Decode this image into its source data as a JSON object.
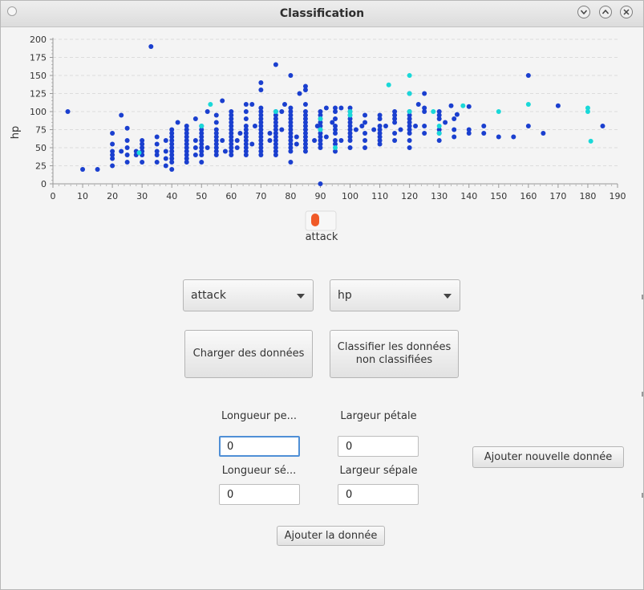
{
  "window": {
    "title": "Classification",
    "controls": [
      "chevron-down-icon",
      "chevron-up-icon",
      "close-icon"
    ]
  },
  "chart_data": {
    "type": "scatter",
    "title": "",
    "xlabel": "",
    "ylabel": "hp",
    "xlim": [
      0,
      190
    ],
    "ylim": [
      0,
      200
    ],
    "x_ticks": [
      "0",
      "10",
      "20",
      "30",
      "40",
      "50",
      "60",
      "70",
      "80",
      "90",
      "100",
      "110",
      "120",
      "130",
      "140",
      "150",
      "160",
      "170",
      "180",
      "190"
    ],
    "y_ticks": [
      "0",
      "25",
      "50",
      "75",
      "100",
      "125",
      "150",
      "175",
      "200"
    ],
    "grid": true,
    "legend": {
      "placement": "bottom-center",
      "entries": [
        {
          "label": "attack",
          "color": "#f05a28"
        }
      ]
    },
    "colors": {
      "classified": "#1a3fcf",
      "unclassified": "#19d8d8"
    },
    "series": [
      {
        "class": "classified",
        "points": [
          [
            5,
            100
          ],
          [
            10,
            20
          ],
          [
            15,
            20
          ],
          [
            20,
            25
          ],
          [
            20,
            35
          ],
          [
            20,
            40
          ],
          [
            20,
            45
          ],
          [
            20,
            55
          ],
          [
            20,
            70
          ],
          [
            23,
            45
          ],
          [
            23,
            95
          ],
          [
            25,
            30
          ],
          [
            25,
            40
          ],
          [
            25,
            50
          ],
          [
            25,
            60
          ],
          [
            25,
            77
          ],
          [
            28,
            40
          ],
          [
            28,
            45
          ],
          [
            30,
            30
          ],
          [
            30,
            40
          ],
          [
            30,
            45
          ],
          [
            30,
            50
          ],
          [
            30,
            55
          ],
          [
            30,
            60
          ],
          [
            33,
            190
          ],
          [
            35,
            30
          ],
          [
            35,
            40
          ],
          [
            35,
            45
          ],
          [
            35,
            55
          ],
          [
            35,
            65
          ],
          [
            38,
            25
          ],
          [
            38,
            35
          ],
          [
            38,
            45
          ],
          [
            38,
            60
          ],
          [
            40,
            20
          ],
          [
            40,
            30
          ],
          [
            40,
            35
          ],
          [
            40,
            40
          ],
          [
            40,
            45
          ],
          [
            40,
            50
          ],
          [
            40,
            55
          ],
          [
            40,
            60
          ],
          [
            40,
            65
          ],
          [
            40,
            70
          ],
          [
            40,
            75
          ],
          [
            42,
            85
          ],
          [
            45,
            30
          ],
          [
            45,
            35
          ],
          [
            45,
            40
          ],
          [
            45,
            45
          ],
          [
            45,
            50
          ],
          [
            45,
            55
          ],
          [
            45,
            60
          ],
          [
            45,
            65
          ],
          [
            45,
            70
          ],
          [
            45,
            75
          ],
          [
            45,
            80
          ],
          [
            48,
            40
          ],
          [
            48,
            50
          ],
          [
            48,
            60
          ],
          [
            48,
            90
          ],
          [
            50,
            30
          ],
          [
            50,
            40
          ],
          [
            50,
            45
          ],
          [
            50,
            50
          ],
          [
            50,
            55
          ],
          [
            50,
            60
          ],
          [
            50,
            65
          ],
          [
            50,
            70
          ],
          [
            50,
            75
          ],
          [
            50,
            80
          ],
          [
            52,
            50
          ],
          [
            52,
            100
          ],
          [
            55,
            40
          ],
          [
            55,
            45
          ],
          [
            55,
            50
          ],
          [
            55,
            55
          ],
          [
            55,
            60
          ],
          [
            55,
            65
          ],
          [
            55,
            70
          ],
          [
            55,
            75
          ],
          [
            55,
            85
          ],
          [
            55,
            95
          ],
          [
            57,
            60
          ],
          [
            57,
            115
          ],
          [
            58,
            45
          ],
          [
            60,
            40
          ],
          [
            60,
            45
          ],
          [
            60,
            50
          ],
          [
            60,
            55
          ],
          [
            60,
            60
          ],
          [
            60,
            65
          ],
          [
            60,
            70
          ],
          [
            60,
            75
          ],
          [
            60,
            80
          ],
          [
            60,
            85
          ],
          [
            60,
            90
          ],
          [
            60,
            95
          ],
          [
            60,
            100
          ],
          [
            62,
            50
          ],
          [
            62,
            60
          ],
          [
            63,
            70
          ],
          [
            65,
            40
          ],
          [
            65,
            45
          ],
          [
            65,
            50
          ],
          [
            65,
            55
          ],
          [
            65,
            60
          ],
          [
            65,
            65
          ],
          [
            65,
            70
          ],
          [
            65,
            75
          ],
          [
            65,
            80
          ],
          [
            65,
            90
          ],
          [
            65,
            100
          ],
          [
            65,
            110
          ],
          [
            67,
            55
          ],
          [
            67,
            110
          ],
          [
            68,
            80
          ],
          [
            70,
            40
          ],
          [
            70,
            45
          ],
          [
            70,
            50
          ],
          [
            70,
            55
          ],
          [
            70,
            60
          ],
          [
            70,
            65
          ],
          [
            70,
            70
          ],
          [
            70,
            75
          ],
          [
            70,
            80
          ],
          [
            70,
            85
          ],
          [
            70,
            90
          ],
          [
            70,
            95
          ],
          [
            70,
            100
          ],
          [
            70,
            105
          ],
          [
            70,
            130
          ],
          [
            70,
            140
          ],
          [
            73,
            60
          ],
          [
            73,
            70
          ],
          [
            75,
            40
          ],
          [
            75,
            45
          ],
          [
            75,
            50
          ],
          [
            75,
            55
          ],
          [
            75,
            60
          ],
          [
            75,
            65
          ],
          [
            75,
            70
          ],
          [
            75,
            75
          ],
          [
            75,
            80
          ],
          [
            75,
            85
          ],
          [
            75,
            90
          ],
          [
            75,
            95
          ],
          [
            75,
            100
          ],
          [
            75,
            165
          ],
          [
            77,
            75
          ],
          [
            77,
            100
          ],
          [
            78,
            110
          ],
          [
            80,
            30
          ],
          [
            80,
            45
          ],
          [
            80,
            50
          ],
          [
            80,
            55
          ],
          [
            80,
            60
          ],
          [
            80,
            65
          ],
          [
            80,
            70
          ],
          [
            80,
            75
          ],
          [
            80,
            80
          ],
          [
            80,
            85
          ],
          [
            80,
            90
          ],
          [
            80,
            95
          ],
          [
            80,
            100
          ],
          [
            80,
            105
          ],
          [
            80,
            150
          ],
          [
            82,
            55
          ],
          [
            82,
            65
          ],
          [
            83,
            125
          ],
          [
            85,
            45
          ],
          [
            85,
            50
          ],
          [
            85,
            55
          ],
          [
            85,
            60
          ],
          [
            85,
            65
          ],
          [
            85,
            70
          ],
          [
            85,
            75
          ],
          [
            85,
            80
          ],
          [
            85,
            85
          ],
          [
            85,
            90
          ],
          [
            85,
            95
          ],
          [
            85,
            100
          ],
          [
            85,
            110
          ],
          [
            85,
            130
          ],
          [
            85,
            135
          ],
          [
            88,
            60
          ],
          [
            89,
            80
          ],
          [
            90,
            0
          ],
          [
            90,
            50
          ],
          [
            90,
            55
          ],
          [
            90,
            60
          ],
          [
            90,
            65
          ],
          [
            90,
            70
          ],
          [
            90,
            75
          ],
          [
            90,
            80
          ],
          [
            90,
            85
          ],
          [
            90,
            90
          ],
          [
            90,
            95
          ],
          [
            90,
            100
          ],
          [
            92,
            65
          ],
          [
            92,
            105
          ],
          [
            94,
            85
          ],
          [
            95,
            45
          ],
          [
            95,
            55
          ],
          [
            95,
            60
          ],
          [
            95,
            70
          ],
          [
            95,
            75
          ],
          [
            95,
            80
          ],
          [
            95,
            90
          ],
          [
            95,
            100
          ],
          [
            95,
            105
          ],
          [
            97,
            60
          ],
          [
            97,
            105
          ],
          [
            100,
            50
          ],
          [
            100,
            60
          ],
          [
            100,
            65
          ],
          [
            100,
            70
          ],
          [
            100,
            75
          ],
          [
            100,
            80
          ],
          [
            100,
            85
          ],
          [
            100,
            90
          ],
          [
            100,
            95
          ],
          [
            100,
            100
          ],
          [
            100,
            105
          ],
          [
            102,
            75
          ],
          [
            104,
            80
          ],
          [
            105,
            50
          ],
          [
            105,
            60
          ],
          [
            105,
            70
          ],
          [
            105,
            85
          ],
          [
            105,
            95
          ],
          [
            108,
            75
          ],
          [
            110,
            55
          ],
          [
            110,
            60
          ],
          [
            110,
            65
          ],
          [
            110,
            70
          ],
          [
            110,
            75
          ],
          [
            110,
            80
          ],
          [
            110,
            90
          ],
          [
            110,
            95
          ],
          [
            112,
            80
          ],
          [
            115,
            60
          ],
          [
            115,
            70
          ],
          [
            115,
            85
          ],
          [
            115,
            90
          ],
          [
            115,
            95
          ],
          [
            115,
            100
          ],
          [
            117,
            75
          ],
          [
            120,
            50
          ],
          [
            120,
            60
          ],
          [
            120,
            70
          ],
          [
            120,
            75
          ],
          [
            120,
            80
          ],
          [
            120,
            85
          ],
          [
            120,
            90
          ],
          [
            120,
            95
          ],
          [
            120,
            100
          ],
          [
            120,
            125
          ],
          [
            122,
            80
          ],
          [
            123,
            110
          ],
          [
            125,
            70
          ],
          [
            125,
            80
          ],
          [
            125,
            100
          ],
          [
            125,
            105
          ],
          [
            125,
            125
          ],
          [
            130,
            60
          ],
          [
            130,
            70
          ],
          [
            130,
            75
          ],
          [
            130,
            90
          ],
          [
            130,
            95
          ],
          [
            130,
            100
          ],
          [
            132,
            85
          ],
          [
            134,
            108
          ],
          [
            135,
            65
          ],
          [
            135,
            75
          ],
          [
            135,
            90
          ],
          [
            136,
            96
          ],
          [
            140,
            70
          ],
          [
            140,
            75
          ],
          [
            140,
            107
          ],
          [
            145,
            70
          ],
          [
            145,
            80
          ],
          [
            150,
            65
          ],
          [
            155,
            65
          ],
          [
            160,
            80
          ],
          [
            160,
            150
          ],
          [
            165,
            70
          ],
          [
            170,
            108
          ],
          [
            185,
            80
          ]
        ]
      },
      {
        "class": "unclassified",
        "points": [
          [
            29,
            43
          ],
          [
            50,
            80
          ],
          [
            53,
            110
          ],
          [
            75,
            100
          ],
          [
            90,
            75
          ],
          [
            90,
            90
          ],
          [
            95,
            50
          ],
          [
            100,
            95
          ],
          [
            100,
            100
          ],
          [
            113,
            137
          ],
          [
            120,
            100
          ],
          [
            120,
            125
          ],
          [
            120,
            150
          ],
          [
            128,
            100
          ],
          [
            130,
            70
          ],
          [
            130,
            80
          ],
          [
            138,
            108
          ],
          [
            150,
            100
          ],
          [
            160,
            110
          ],
          [
            180,
            100
          ],
          [
            180,
            105
          ],
          [
            181,
            59
          ]
        ]
      }
    ]
  },
  "controls": {
    "x_axis_select": {
      "selected": "attack"
    },
    "y_axis_select": {
      "selected": "hp"
    },
    "load_button_label": "Charger des données",
    "classify_button_label_line1": "Classifier les données",
    "classify_button_label_line2": "non classifiées"
  },
  "form": {
    "field1": {
      "label": "Longueur pe...",
      "value": "0"
    },
    "field2": {
      "label": "Largeur pétale",
      "value": "0"
    },
    "field3": {
      "label": "Longueur sé...",
      "value": "0"
    },
    "field4": {
      "label": "Largeur sépale",
      "value": "0"
    },
    "add_new_button_label": "Ajouter nouvelle donnée",
    "add_button_label": "Ajouter la donnée"
  }
}
